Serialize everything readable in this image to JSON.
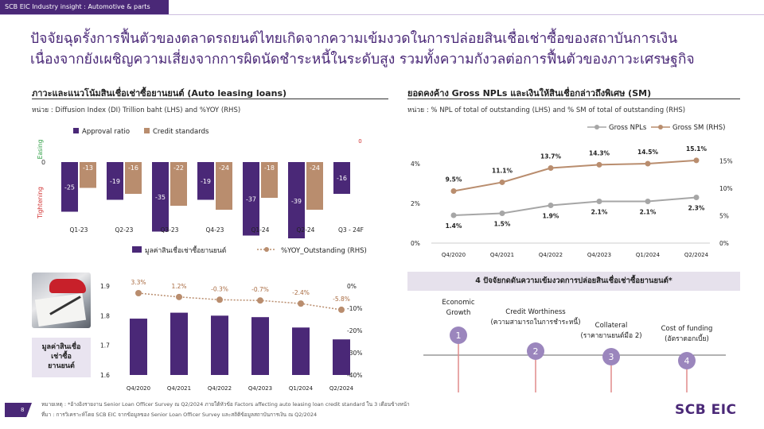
{
  "header": {
    "tag": "SCB EIC Industry insight : Automotive & parts"
  },
  "headline": {
    "line1": "ปัจจัยฉุดรั้งการฟื้นตัวของตลาดรถยนต์ไทยเกิดจากความเข้มงวดในการปล่อยสินเชื่อเช่าซื้อของสถาบันการเงิน",
    "line2": "เนื่องจากยังเผชิญความเสี่ยงจากการผิดนัดชำระหนี้ในระดับสูง รวมทั้งความกังวลต่อการฟื้นตัวของภาวะเศรษฐกิจ"
  },
  "left_top": {
    "title": "ภาวะและแนวโน้มสินเชื่อเช่าซื้อยานยนต์ (Auto leasing loans)",
    "unit": "หน่วย : Diffusion Index (DI) Trillion baht (LHS) and %YOY (RHS)",
    "axis_easing": "Easing",
    "axis_tightening": "Tightening",
    "zero_label": "0"
  },
  "right_top": {
    "title": "ยอดคงค้าง Gross NPLs และเงินให้สินเชื่อกล่าวถึงพิเศษ (SM)",
    "unit": "หน่วย : % NPL of total of outstanding (LHS) and % SM of total of outstanding (RHS)"
  },
  "side_box": {
    "line1": "มูลค่าสินเชื่อ",
    "line2": "เช่าซื้อ",
    "line3": "ยานยนต์"
  },
  "factors": {
    "banner": "4 ปัจจัยกดดันความเข้มงวดการปล่อยสินเชื่อเช่าซื้อยานยนต์*",
    "items": [
      {
        "num": "1",
        "line1": "Economic",
        "line2": "Growth"
      },
      {
        "num": "2",
        "line1": "Credit Worthiness",
        "line2": "(ความสามารถในการชำระหนี้)"
      },
      {
        "num": "3",
        "line1": "Collateral",
        "line2": "(ราคายานยนต์มือ 2)"
      },
      {
        "num": "4",
        "line1": "Cost of funding",
        "line2": "(อัตราดอกเบี้ย)"
      }
    ]
  },
  "footnotes": {
    "note": "หมายเหตุ : *อ้างอิงรายงาน Senior Loan Officer Survey ณ Q2/2024 ภายใต้หัวข้อ Factors affecting auto leasing loan credit standard ใน 3 เดือนข้างหน้า",
    "source": "ที่มา : การวิเคราะห์โดย SCB EIC จากข้อมูลของ Senior Loan Officer Survey และสถิติข้อมูลสถาบันการเงิน ณ Q2/2024"
  },
  "page_number": "8",
  "logo": "SCB EIC",
  "colors": {
    "purple": "#4a2877",
    "tan": "#b98d6e",
    "gray": "#a6a6a6",
    "easing": "#2e9e44",
    "tightening": "#d03030",
    "number_circle": "#9b86bd"
  },
  "icons": [
    "car-photo"
  ],
  "chart_data": [
    {
      "type": "bar",
      "categories": [
        "Q1-23",
        "Q2-23",
        "Q3-23",
        "Q4-23",
        "Q1-24",
        "Q2-24",
        "Q3 - 24F"
      ],
      "series": [
        {
          "name": "Approval ratio",
          "values": [
            -25,
            -19,
            -35,
            -19,
            -37,
            -39,
            -16
          ]
        },
        {
          "name": "Credit standards",
          "values": [
            -13,
            -16,
            -22,
            -24,
            -18,
            -24,
            0
          ]
        }
      ],
      "ylim": [
        -42,
        5
      ],
      "legend": "top-left"
    },
    {
      "type": "line",
      "categories": [
        "Q4/2020",
        "Q4/2021",
        "Q4/2022",
        "Q4/2023",
        "Q1/2024",
        "Q2/2024"
      ],
      "series": [
        {
          "name": "Gross NPLs",
          "axis": "left",
          "values": [
            1.4,
            1.5,
            1.9,
            2.1,
            2.1,
            2.3
          ],
          "labels": [
            "1.4%",
            "1.5%",
            "1.9%",
            "2.1%",
            "2.1%",
            "2.3%"
          ]
        },
        {
          "name": "Gross SM (RHS)",
          "axis": "right",
          "values": [
            9.5,
            11.1,
            13.7,
            14.3,
            14.5,
            15.1
          ],
          "labels": [
            "9.5%",
            "11.1%",
            "13.7%",
            "14.3%",
            "14.5%",
            "15.1%"
          ]
        }
      ],
      "left_ticks": [
        "0%",
        "2%",
        "4%"
      ],
      "left_ylim": [
        0,
        4.8
      ],
      "right_ticks": [
        "0%",
        "5%",
        "10%",
        "15%"
      ],
      "right_ylim": [
        0,
        17.4
      ],
      "legend": "top-right"
    },
    {
      "type": "bar",
      "categories": [
        "Q4/2020",
        "Q4/2021",
        "Q4/2022",
        "Q4/2023",
        "Q1/2024",
        "Q2/2024"
      ],
      "series": [
        {
          "name": "มูลค่าสินเชื่อเช่าซื้อยานยนต์",
          "axis": "left",
          "values": [
            1.79,
            1.81,
            1.8,
            1.795,
            1.76,
            1.72
          ]
        },
        {
          "name": "%YOY_Outstanding (RHS)",
          "axis": "right",
          "values": [
            3.3,
            1.2,
            -0.3,
            -0.7,
            -2.4,
            -5.8
          ],
          "labels": [
            "3.3%",
            "1.2%",
            "-0.3%",
            "-0.7%",
            "-2.4%",
            "-5.8%"
          ]
        }
      ],
      "left_ticks": [
        "1.6",
        "1.7",
        "1.8",
        "1.9"
      ],
      "left_ylim": [
        1.6,
        1.9
      ],
      "right_ticks": [
        "-40%",
        "-30%",
        "-20%",
        "-10%",
        "0%"
      ],
      "right_ylim": [
        -40,
        0
      ],
      "legend": "top"
    }
  ]
}
